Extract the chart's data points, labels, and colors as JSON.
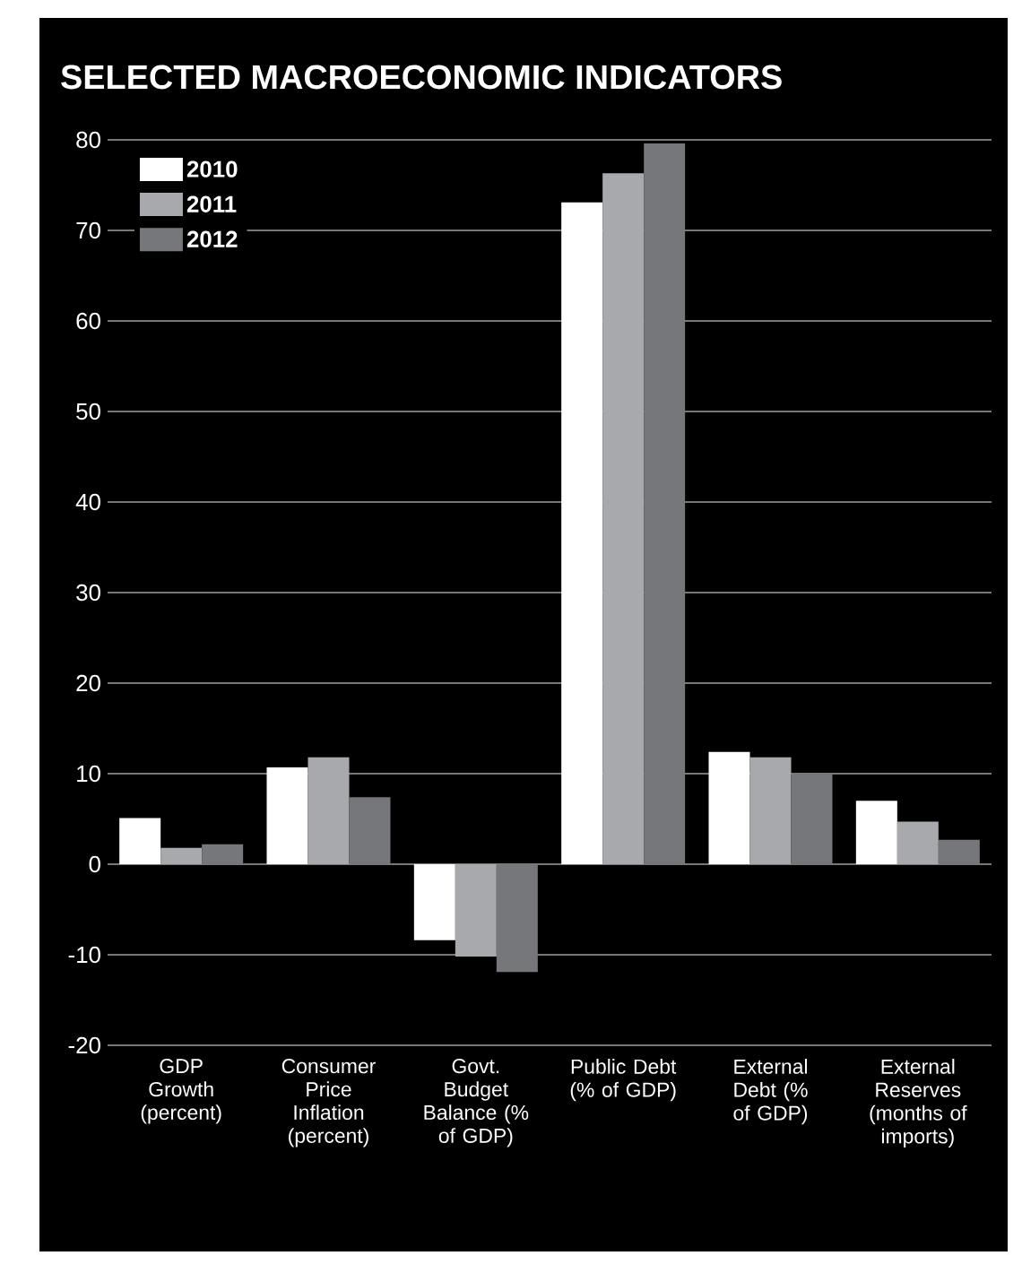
{
  "chart_data": {
    "type": "bar",
    "title": "SELECTED MACROECONOMIC INDICATORS",
    "categories": [
      "GDP Growth (percent)",
      "Consumer Price Inflation (percent)",
      "Govt. Budget Balance (% of GDP)",
      "Public Debt (% of GDP)",
      "External Debt (% of GDP)",
      "External Reserves (months of imports)"
    ],
    "series": [
      {
        "name": "2010",
        "color": "#ffffff",
        "values": [
          5.1,
          10.7,
          -8.4,
          73.1,
          12.4,
          7.0
        ]
      },
      {
        "name": "2011",
        "color": "#a8a9ad",
        "values": [
          1.8,
          11.8,
          -10.2,
          76.3,
          11.8,
          4.7
        ]
      },
      {
        "name": "2012",
        "color": "#76777b",
        "values": [
          2.2,
          7.4,
          -11.9,
          79.6,
          10.0,
          2.7
        ]
      }
    ],
    "ylim": [
      -20,
      80
    ],
    "yticks": [
      -20,
      -10,
      0,
      10,
      20,
      30,
      40,
      50,
      60,
      70,
      80
    ],
    "grid": "y",
    "legend": "top left"
  }
}
